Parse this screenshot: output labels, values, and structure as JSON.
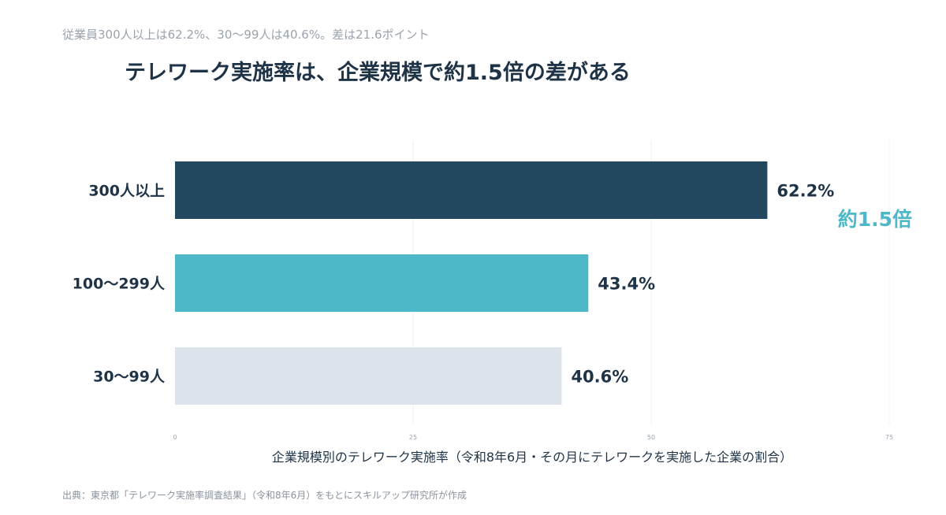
{
  "subtitle": "従業員300人以上は62.2%、30〜99人は40.6%。差は21.6ポイント",
  "title": "テレワーク実施率は、企業規模で約1.5倍の差がある",
  "source": "出典：東京都「テレワーク実施率調査結果」（令和8年6月）をもとにスキルアップ研究所が作成",
  "colors": {
    "bar_300": "#23485f",
    "bar_100": "#4cb8c8",
    "bar_30": "#dce3ea",
    "text_dark": "#1f3347",
    "accent": "#4cb8c8",
    "grid": "#eef0f3"
  },
  "chart_data": {
    "type": "bar",
    "orientation": "horizontal",
    "categories": [
      "300人以上",
      "100〜299人",
      "30〜99人"
    ],
    "values": [
      62.2,
      43.4,
      40.6
    ],
    "value_labels": [
      "62.2%",
      "43.4%",
      "40.6%"
    ],
    "xlabel": "企業規模別のテレワーク実施率（令和8年6月・その月にテレワークを実施した企業の割合）",
    "xlim": [
      0,
      75
    ],
    "xticks": [
      0,
      25,
      50,
      75
    ],
    "grid": true,
    "annotation": "約1.5倍"
  }
}
